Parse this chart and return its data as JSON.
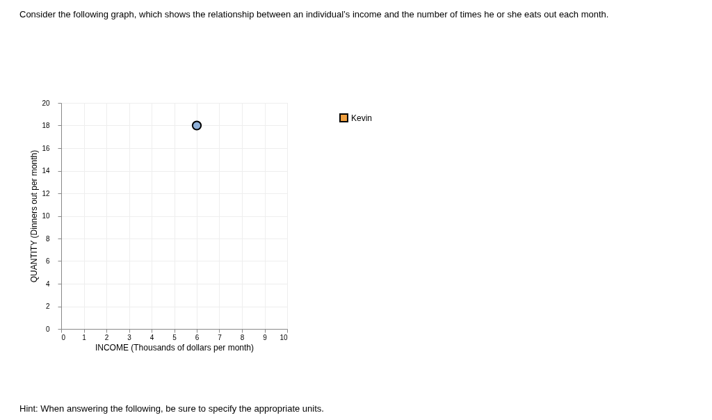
{
  "chart_data": {
    "type": "scatter",
    "title": "Consider the following graph, which shows the relationship between an individual’s income and the number of times he or she eats out each month.",
    "xlabel": "INCOME (Thousands of dollars per month)",
    "ylabel": "QUANTITY (Dinners out per month)",
    "x": [
      6
    ],
    "series": [
      {
        "color": "#8fb0d8",
        "values": [
          18
        ],
        "marker": "circle"
      },
      {
        "name": "Kevin",
        "color": "#f0a040",
        "values": [
          null
        ],
        "marker": "square"
      }
    ],
    "xlim": [
      0,
      10
    ],
    "xticks": [
      0,
      1,
      2,
      3,
      4,
      5,
      6,
      7,
      8,
      9,
      10
    ],
    "ylim": [
      0,
      20
    ],
    "yticks": [
      0,
      2,
      4,
      6,
      8,
      10,
      12,
      14,
      16,
      18,
      20
    ],
    "grid": true,
    "legend": "top right",
    "annotations": [
      "Hint: When answering the following, be sure to specify the appropriate units."
    ]
  }
}
